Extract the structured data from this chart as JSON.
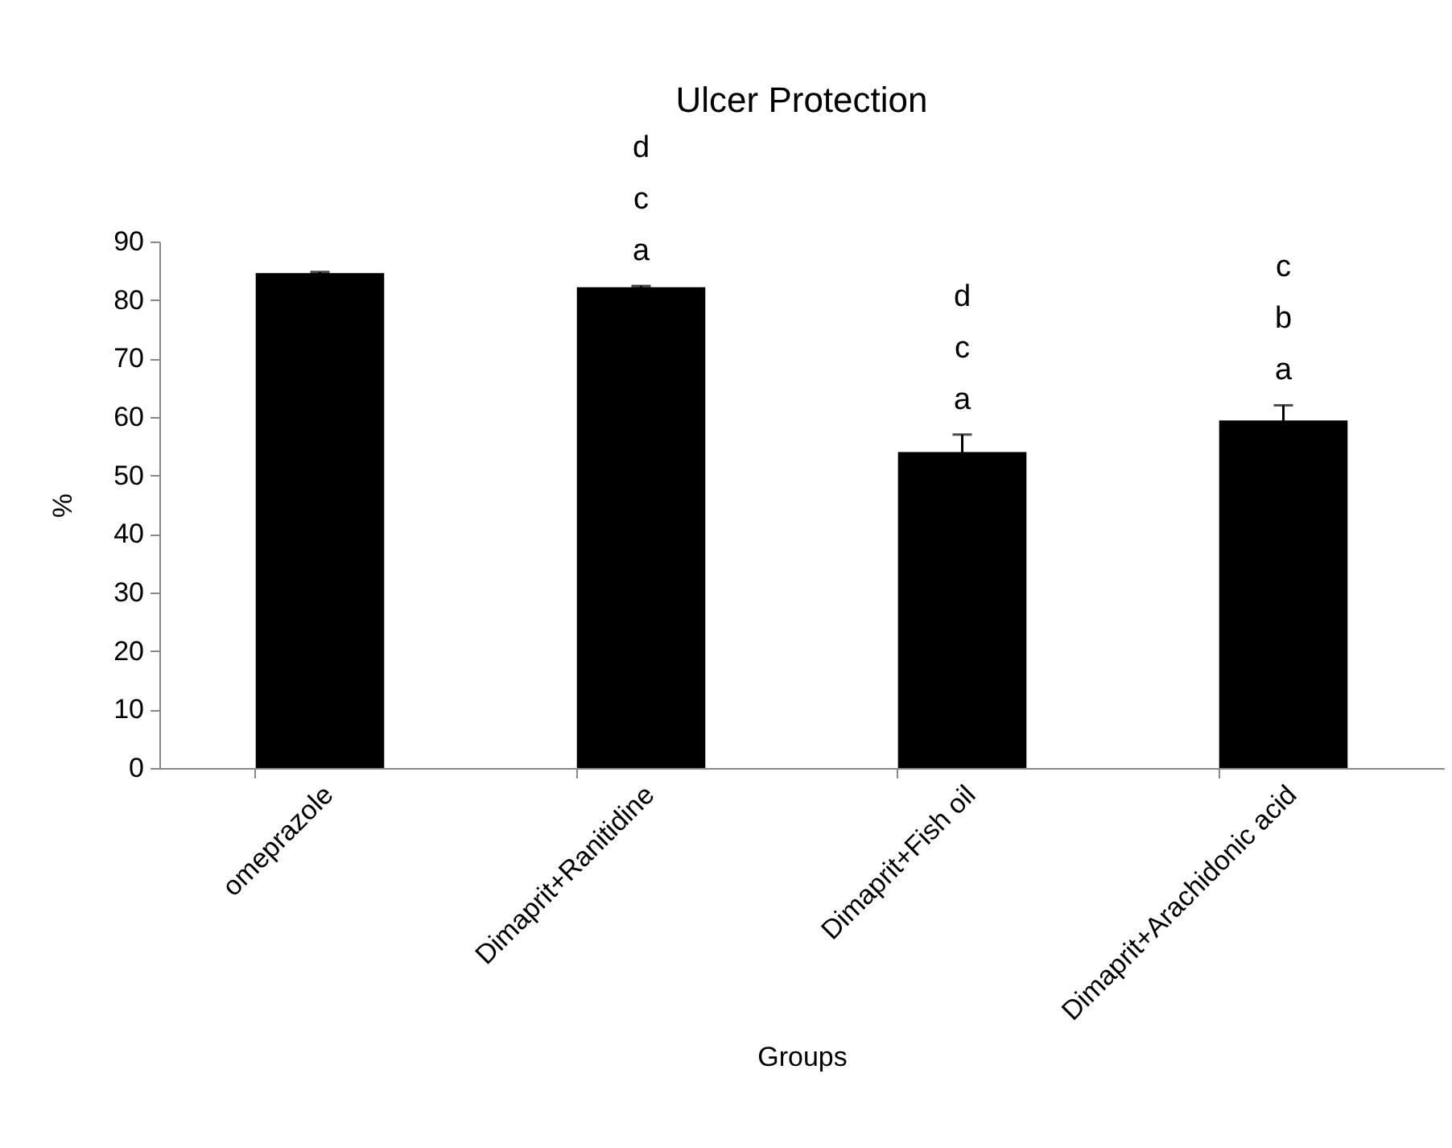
{
  "chart_data": {
    "type": "bar",
    "title": "Ulcer Protection",
    "xlabel": "Groups",
    "ylabel": "%",
    "categories": [
      "omeprazole",
      "Dimaprit+Ranitidine",
      "Dimaprit+Fish oil",
      "Dimaprit+Arachidonic acid"
    ],
    "values": [
      84.6,
      82.2,
      54,
      59.4
    ],
    "errors": [
      0.2,
      0.2,
      3,
      2.6
    ],
    "color": "#000000",
    "ylim": [
      0,
      90
    ],
    "yticks": [
      0,
      10,
      20,
      30,
      40,
      50,
      60,
      70,
      80,
      90
    ],
    "annotations": [
      {
        "text": "d\nc\na",
        "x": "Dimaprit+Ranitidine",
        "y": 82.4
      },
      {
        "text": "d\nc\na",
        "x": "Dimaprit+Fish oil",
        "y": 57
      },
      {
        "text": "c\nb\na",
        "x": "Dimaprit+Arachidonic acid",
        "y": 62
      }
    ]
  }
}
